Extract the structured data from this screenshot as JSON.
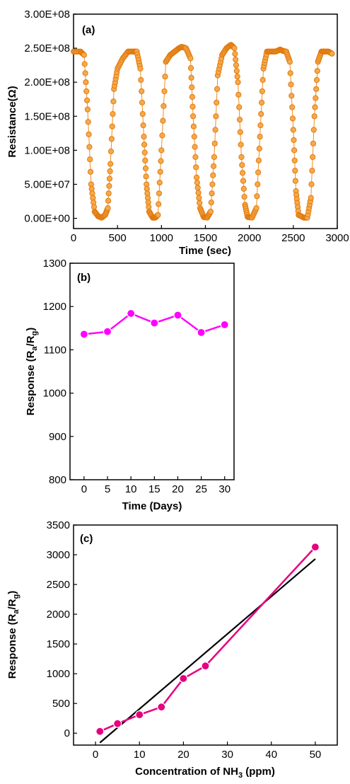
{
  "chart_data": [
    {
      "type": "scatter",
      "panel_label": "(a)",
      "xlabel": "Time (sec)",
      "ylabel": "Resistance(Ω)",
      "xlim": [
        0,
        3000
      ],
      "ylim": [
        -15000000.0,
        300000000.0
      ],
      "xticks": [
        0,
        500,
        1000,
        1500,
        2000,
        2500,
        3000
      ],
      "xtick_labels": [
        "0",
        "500",
        "1000",
        "1500",
        "2000",
        "2500",
        "3000"
      ],
      "yticks": [
        0,
        50000000.0,
        100000000.0,
        150000000.0,
        200000000.0,
        250000000.0,
        300000000.0
      ],
      "ytick_labels": [
        "0.00E+00",
        "5.00E+07",
        "1.00E+08",
        "1.50E+08",
        "2.00E+08",
        "2.50E+08",
        "3.00E+08"
      ],
      "color": "#F28C1E",
      "series": [
        {
          "values_note": "",
          "x": [
            0,
            80,
            120,
            160,
            200,
            240,
            280,
            320,
            360,
            390,
            420,
            460,
            500,
            560,
            620,
            680,
            720,
            760,
            800,
            830,
            860,
            900,
            930,
            960,
            1000,
            1050,
            1100,
            1150,
            1200,
            1230,
            1280,
            1330,
            1360,
            1400,
            1440,
            1480,
            1520,
            1560,
            1600,
            1640,
            1690,
            1740,
            1790,
            1830,
            1870,
            1910,
            1950,
            1980,
            2030,
            2080,
            2120,
            2160,
            2200,
            2250,
            2300,
            2350,
            2380,
            2420,
            2460,
            2500,
            2530,
            2560,
            2620,
            2660,
            2700,
            2740,
            2780,
            2820,
            2860,
            2900,
            2940
          ],
          "y": [
            245000000.0,
            245000000.0,
            240000000.0,
            160000000.0,
            50000000.0,
            10000000.0,
            3000000.0,
            1000000.0,
            5000000.0,
            15000000.0,
            80000000.0,
            190000000.0,
            220000000.0,
            235000000.0,
            245000000.0,
            245000000.0,
            245000000.0,
            220000000.0,
            120000000.0,
            50000000.0,
            10000000.0,
            1000000.0,
            1000000.0,
            5000000.0,
            100000000.0,
            230000000.0,
            240000000.0,
            245000000.0,
            250000000.0,
            252000000.0,
            250000000.0,
            235000000.0,
            150000000.0,
            60000000.0,
            15000000.0,
            2000000.0,
            1000000.0,
            10000000.0,
            90000000.0,
            210000000.0,
            240000000.0,
            250000000.0,
            255000000.0,
            250000000.0,
            200000000.0,
            90000000.0,
            20000000.0,
            2000000.0,
            1000000.0,
            15000000.0,
            120000000.0,
            220000000.0,
            245000000.0,
            245000000.0,
            245000000.0,
            248000000.0,
            246000000.0,
            245000000.0,
            230000000.0,
            130000000.0,
            40000000.0,
            5000000.0,
            1000000.0,
            1000000.0,
            30000000.0,
            150000000.0,
            230000000.0,
            245000000.0,
            245000000.0,
            245000000.0,
            242000000.0
          ]
        }
      ]
    },
    {
      "type": "line",
      "panel_label": "(b)",
      "xlabel": "Time (Days)",
      "ylabel_main": "Response (R",
      "ylabel_sub_a": "a",
      "ylabel_mid": "/R",
      "ylabel_sub_g": "g",
      "ylabel_end": ")",
      "xlim": [
        -3,
        32
      ],
      "ylim": [
        800,
        1300
      ],
      "xticks": [
        0,
        5,
        10,
        15,
        20,
        25,
        30
      ],
      "xtick_labels": [
        "0",
        "5",
        "10",
        "15",
        "20",
        "25",
        "30"
      ],
      "yticks": [
        800,
        900,
        1000,
        1100,
        1200,
        1300
      ],
      "ytick_labels": [
        "800",
        "900",
        "1000",
        "1100",
        "1200",
        "1300"
      ],
      "color": "#FF00FF",
      "series": [
        {
          "x": [
            0,
            5,
            10,
            15,
            20,
            25,
            30
          ],
          "y": [
            1136,
            1142,
            1184,
            1162,
            1180,
            1140,
            1158
          ]
        }
      ]
    },
    {
      "type": "line",
      "panel_label": "(c)",
      "xlabel_main": "Concentration of NH",
      "xlabel_sub": "3",
      "xlabel_end": " (ppm)",
      "ylabel_main": "Response (R",
      "ylabel_sub_a": "a",
      "ylabel_mid": "/R",
      "ylabel_sub_g": "g",
      "ylabel_end": ")",
      "xlim": [
        -5,
        55
      ],
      "ylim": [
        -200,
        3500
      ],
      "xticks": [
        0,
        10,
        20,
        30,
        40,
        50
      ],
      "xtick_labels": [
        "0",
        "10",
        "20",
        "30",
        "40",
        "50"
      ],
      "yticks": [
        0,
        500,
        1000,
        1500,
        2000,
        2500,
        3000,
        3500
      ],
      "ytick_labels": [
        "0",
        "500",
        "1000",
        "1500",
        "2000",
        "2500",
        "3000",
        "3500"
      ],
      "color": "#E6007E",
      "fit_color": "#000000",
      "series": [
        {
          "x": [
            1,
            5,
            10,
            15,
            20,
            25,
            50
          ],
          "y": [
            30,
            160,
            310,
            440,
            920,
            1130,
            3130
          ]
        }
      ],
      "fit_line": {
        "x": [
          1,
          50
        ],
        "y": [
          -160,
          2930
        ]
      }
    }
  ]
}
